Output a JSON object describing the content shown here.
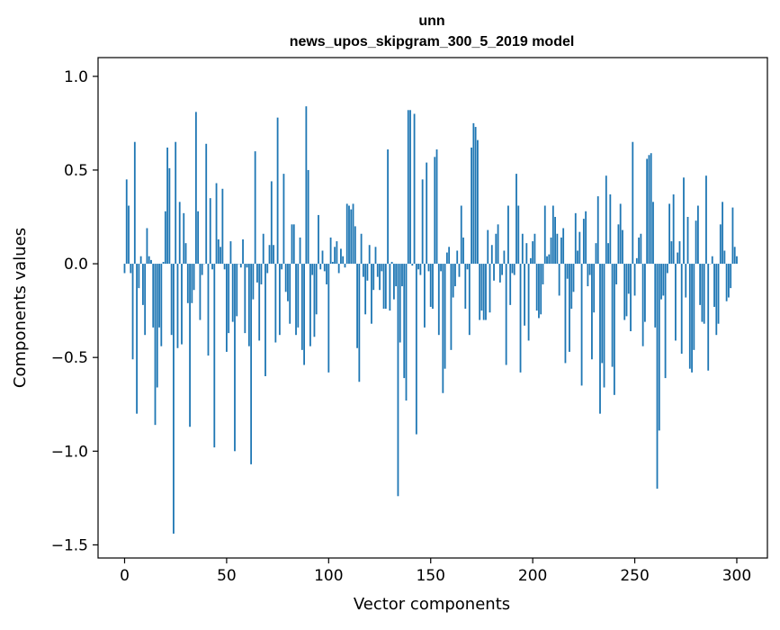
{
  "chart_data": {
    "type": "bar",
    "title_lines": [
      "unn",
      "news_upos_skipgram_300_5_2019 model"
    ],
    "xlabel": "Vector components",
    "ylabel": "Components values",
    "xlim": [
      -13,
      315
    ],
    "ylim": [
      -1.57,
      1.1
    ],
    "xticks": [
      0,
      50,
      100,
      150,
      200,
      250,
      300
    ],
    "xtick_labels": [
      "0",
      "50",
      "100",
      "150",
      "200",
      "250",
      "300"
    ],
    "yticks": [
      -1.5,
      -1.0,
      -0.5,
      0.0,
      0.5,
      1.0
    ],
    "ytick_labels": [
      "−1.5",
      "−1.0",
      "−0.5",
      "0.0",
      "0.5",
      "1.0"
    ],
    "bar_color": "#1f77b4",
    "grid": false,
    "x_start": 0,
    "values": [
      -0.05,
      0.45,
      0.31,
      -0.05,
      -0.51,
      0.65,
      -0.8,
      -0.13,
      0.04,
      -0.22,
      -0.38,
      0.19,
      0.04,
      0.02,
      -0.34,
      -0.86,
      -0.66,
      -0.34,
      -0.44,
      0.01,
      0.28,
      0.62,
      0.51,
      -0.38,
      -1.44,
      0.65,
      -0.45,
      0.33,
      -0.43,
      0.27,
      0.11,
      -0.21,
      -0.87,
      -0.21,
      -0.14,
      0.81,
      0.28,
      -0.3,
      -0.06,
      0.0,
      0.64,
      -0.49,
      0.35,
      -0.03,
      -0.98,
      0.43,
      0.13,
      0.09,
      0.4,
      -0.03,
      -0.47,
      -0.37,
      0.12,
      -0.31,
      -1.0,
      -0.28,
      0.0,
      -0.02,
      0.13,
      -0.37,
      -0.02,
      -0.44,
      -1.07,
      -0.19,
      0.6,
      -0.1,
      -0.41,
      -0.11,
      0.16,
      -0.6,
      -0.05,
      0.1,
      0.44,
      0.1,
      -0.42,
      0.78,
      -0.38,
      -0.03,
      0.48,
      -0.15,
      -0.2,
      -0.32,
      0.21,
      0.21,
      -0.38,
      -0.34,
      0.14,
      -0.46,
      -0.54,
      0.84,
      0.5,
      -0.44,
      -0.06,
      -0.39,
      -0.27,
      0.26,
      -0.03,
      0.07,
      -0.04,
      -0.11,
      -0.58,
      0.14,
      0.01,
      0.09,
      0.12,
      -0.05,
      0.08,
      0.04,
      -0.02,
      0.32,
      0.31,
      0.29,
      0.32,
      0.2,
      -0.45,
      -0.63,
      0.16,
      -0.07,
      -0.27,
      -0.09,
      0.1,
      -0.32,
      -0.14,
      0.09,
      -0.07,
      -0.14,
      -0.04,
      -0.24,
      -0.24,
      0.61,
      -0.25,
      0.01,
      -0.19,
      -0.12,
      -1.24,
      -0.42,
      -0.12,
      -0.61,
      -0.73,
      0.82,
      0.82,
      -0.01,
      0.8,
      -0.91,
      -0.03,
      -0.06,
      0.45,
      -0.34,
      0.54,
      -0.04,
      -0.23,
      -0.24,
      0.57,
      0.61,
      -0.38,
      -0.04,
      -0.69,
      -0.56,
      0.06,
      0.09,
      -0.46,
      -0.18,
      -0.12,
      0.07,
      -0.07,
      0.31,
      0.14,
      -0.24,
      -0.03,
      -0.38,
      0.62,
      0.75,
      0.73,
      0.66,
      -0.3,
      -0.25,
      -0.3,
      -0.3,
      0.18,
      -0.26,
      0.1,
      -0.09,
      0.16,
      0.21,
      -0.1,
      -0.06,
      0.07,
      -0.54,
      0.31,
      -0.22,
      -0.05,
      -0.06,
      0.48,
      0.31,
      -0.58,
      0.16,
      -0.33,
      0.11,
      -0.41,
      0.03,
      0.12,
      0.16,
      -0.25,
      -0.29,
      -0.27,
      -0.11,
      0.31,
      0.04,
      0.05,
      0.14,
      0.31,
      0.25,
      0.16,
      -0.17,
      0.14,
      0.19,
      -0.53,
      -0.08,
      -0.47,
      -0.24,
      -0.15,
      0.27,
      0.07,
      0.17,
      -0.65,
      0.24,
      0.28,
      -0.12,
      -0.06,
      -0.51,
      -0.26,
      0.11,
      0.36,
      -0.8,
      -0.53,
      -0.66,
      0.47,
      0.11,
      0.37,
      -0.55,
      -0.7,
      -0.11,
      0.21,
      0.32,
      0.18,
      -0.3,
      -0.28,
      -0.16,
      -0.36,
      0.65,
      -0.17,
      0.03,
      0.14,
      0.16,
      -0.44,
      -0.31,
      0.56,
      0.58,
      0.59,
      0.33,
      -0.34,
      -1.2,
      -0.89,
      -0.19,
      -0.17,
      -0.61,
      -0.05,
      0.32,
      0.12,
      0.37,
      -0.41,
      0.06,
      0.12,
      -0.48,
      0.46,
      -0.18,
      0.25,
      -0.56,
      -0.58,
      -0.46,
      0.23,
      0.31,
      -0.22,
      -0.31,
      -0.32,
      0.47,
      -0.57,
      0.0,
      0.04,
      -0.23,
      -0.38,
      -0.32,
      0.21,
      0.33,
      0.07,
      -0.2,
      -0.18,
      -0.13,
      0.3,
      0.09,
      0.04
    ]
  }
}
